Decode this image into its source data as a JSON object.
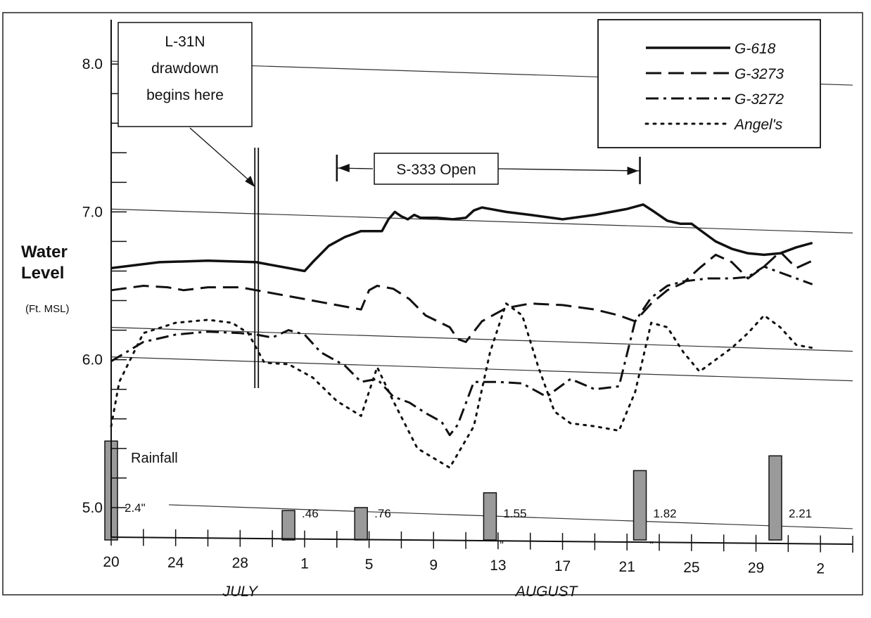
{
  "chart_data": {
    "type": "line",
    "ylabel": "Water Level",
    "ylabel_unit": "(Ft. MSL)",
    "y_tick_labels": [
      "8.0",
      "7.0",
      "6.0",
      "5.0"
    ],
    "y_ticks": [
      8.0,
      7.0,
      6.0,
      5.0
    ],
    "ylim": [
      4.8,
      8.3
    ],
    "x_unit": "day index (0 = July 20)",
    "xlim": [
      0,
      46
    ],
    "x_tick_labels": [
      {
        "day": 0,
        "label": "20"
      },
      {
        "day": 4,
        "label": "24"
      },
      {
        "day": 8,
        "label": "28"
      },
      {
        "day": 12,
        "label": "1"
      },
      {
        "day": 16,
        "label": "5"
      },
      {
        "day": 20,
        "label": "9"
      },
      {
        "day": 24,
        "label": "13"
      },
      {
        "day": 28,
        "label": "17"
      },
      {
        "day": 32,
        "label": "21"
      },
      {
        "day": 36,
        "label": "25"
      },
      {
        "day": 40,
        "label": "29"
      },
      {
        "day": 44,
        "label": "2"
      }
    ],
    "month_labels": [
      {
        "day": 8,
        "label": "JULY"
      },
      {
        "day": 27,
        "label": "AUGUST"
      }
    ],
    "legend": "top-right",
    "series": [
      {
        "name": "G-618",
        "style": "solid",
        "points": [
          [
            0,
            6.62
          ],
          [
            3,
            6.66
          ],
          [
            6,
            6.67
          ],
          [
            9,
            6.66
          ],
          [
            12,
            6.6
          ],
          [
            12.5,
            6.66
          ],
          [
            13.5,
            6.77
          ],
          [
            14.5,
            6.83
          ],
          [
            15.5,
            6.87
          ],
          [
            16.8,
            6.87
          ],
          [
            17.2,
            6.95
          ],
          [
            17.6,
            7.0
          ],
          [
            18,
            6.97
          ],
          [
            18.4,
            6.95
          ],
          [
            18.8,
            6.98
          ],
          [
            19.2,
            6.96
          ],
          [
            20.2,
            6.96
          ],
          [
            21.2,
            6.95
          ],
          [
            22,
            6.96
          ],
          [
            22.5,
            7.01
          ],
          [
            23,
            7.03
          ],
          [
            23.5,
            7.02
          ],
          [
            24.5,
            7.0
          ],
          [
            26,
            6.98
          ],
          [
            28,
            6.95
          ],
          [
            30,
            6.98
          ],
          [
            32,
            7.02
          ],
          [
            33,
            7.05
          ],
          [
            33.7,
            7.0
          ],
          [
            34.5,
            6.94
          ],
          [
            35.3,
            6.92
          ],
          [
            36,
            6.92
          ],
          [
            36.5,
            6.88
          ],
          [
            37.5,
            6.8
          ],
          [
            38.5,
            6.75
          ],
          [
            39.5,
            6.72
          ],
          [
            40.5,
            6.71
          ],
          [
            41.5,
            6.72
          ],
          [
            42.5,
            6.76
          ],
          [
            43.5,
            6.79
          ]
        ]
      },
      {
        "name": "G-3273",
        "style": "dashed",
        "points": [
          [
            0,
            6.47
          ],
          [
            2,
            6.5
          ],
          [
            3.5,
            6.49
          ],
          [
            4.5,
            6.47
          ],
          [
            6,
            6.49
          ],
          [
            8,
            6.49
          ],
          [
            10,
            6.45
          ],
          [
            12,
            6.41
          ],
          [
            14,
            6.37
          ],
          [
            15.5,
            6.34
          ],
          [
            16,
            6.47
          ],
          [
            16.5,
            6.5
          ],
          [
            17.5,
            6.48
          ],
          [
            18.5,
            6.41
          ],
          [
            19.5,
            6.3
          ],
          [
            21,
            6.22
          ],
          [
            21.5,
            6.14
          ],
          [
            22,
            6.12
          ],
          [
            23,
            6.26
          ],
          [
            24.5,
            6.35
          ],
          [
            26,
            6.38
          ],
          [
            28,
            6.37
          ],
          [
            30,
            6.34
          ],
          [
            31.5,
            6.3
          ],
          [
            32.5,
            6.26
          ],
          [
            33.5,
            6.38
          ],
          [
            34.5,
            6.47
          ],
          [
            35.5,
            6.52
          ],
          [
            36.5,
            6.62
          ],
          [
            37.5,
            6.71
          ],
          [
            38.5,
            6.66
          ],
          [
            39.5,
            6.55
          ],
          [
            40.5,
            6.63
          ],
          [
            41.5,
            6.73
          ],
          [
            42.5,
            6.62
          ],
          [
            43.5,
            6.67
          ]
        ]
      },
      {
        "name": "G-3272",
        "style": "dashdot",
        "points": [
          [
            0,
            5.99
          ],
          [
            2,
            6.12
          ],
          [
            4,
            6.17
          ],
          [
            6,
            6.19
          ],
          [
            8,
            6.18
          ],
          [
            9,
            6.17
          ],
          [
            10,
            6.15
          ],
          [
            11,
            6.2
          ],
          [
            12,
            6.17
          ],
          [
            13,
            6.05
          ],
          [
            14.5,
            5.96
          ],
          [
            15.5,
            5.85
          ],
          [
            16.5,
            5.87
          ],
          [
            17.5,
            5.75
          ],
          [
            18.5,
            5.71
          ],
          [
            19.5,
            5.64
          ],
          [
            20.5,
            5.58
          ],
          [
            21,
            5.49
          ],
          [
            21.5,
            5.56
          ],
          [
            22.5,
            5.85
          ],
          [
            24,
            5.85
          ],
          [
            25.5,
            5.84
          ],
          [
            27,
            5.75
          ],
          [
            28.5,
            5.87
          ],
          [
            30,
            5.8
          ],
          [
            31.5,
            5.82
          ],
          [
            32.5,
            6.26
          ],
          [
            33.5,
            6.42
          ],
          [
            34.5,
            6.5
          ],
          [
            35.5,
            6.53
          ],
          [
            37,
            6.55
          ],
          [
            38,
            6.55
          ],
          [
            38.5,
            6.55
          ],
          [
            39.5,
            6.56
          ],
          [
            40.5,
            6.63
          ],
          [
            41.5,
            6.59
          ],
          [
            42.5,
            6.55
          ],
          [
            43.5,
            6.51
          ]
        ]
      },
      {
        "name": "Angel's",
        "style": "dotted",
        "points": [
          [
            0,
            5.55
          ],
          [
            0.5,
            5.85
          ],
          [
            2,
            6.18
          ],
          [
            4,
            6.25
          ],
          [
            6,
            6.27
          ],
          [
            7.5,
            6.25
          ],
          [
            8.5,
            6.18
          ],
          [
            9.5,
            5.98
          ],
          [
            11,
            5.97
          ],
          [
            12.5,
            5.88
          ],
          [
            14,
            5.72
          ],
          [
            15.5,
            5.62
          ],
          [
            16.5,
            5.95
          ],
          [
            17.5,
            5.72
          ],
          [
            19,
            5.4
          ],
          [
            21,
            5.27
          ],
          [
            22.5,
            5.55
          ],
          [
            23.5,
            6.05
          ],
          [
            24.5,
            6.38
          ],
          [
            25.5,
            6.3
          ],
          [
            26.5,
            5.95
          ],
          [
            27.5,
            5.65
          ],
          [
            28.5,
            5.57
          ],
          [
            30,
            5.55
          ],
          [
            31.5,
            5.52
          ],
          [
            32.5,
            5.78
          ],
          [
            33.5,
            6.25
          ],
          [
            34.5,
            6.22
          ],
          [
            35.5,
            6.05
          ],
          [
            36.5,
            5.92
          ],
          [
            37.5,
            6.0
          ],
          [
            38.5,
            6.08
          ],
          [
            39.5,
            6.18
          ],
          [
            40.5,
            6.3
          ],
          [
            41.5,
            6.22
          ],
          [
            42.5,
            6.1
          ],
          [
            43.5,
            6.08
          ]
        ]
      }
    ],
    "rainfall": {
      "label": "Rainfall",
      "bars": [
        {
          "day": 0,
          "top": 5.45,
          "label": "2.4\""
        },
        {
          "day": 11,
          "top": 4.98,
          "label": ".46"
        },
        {
          "day": 15.5,
          "top": 5.0,
          "label": ".76"
        },
        {
          "day": 23.5,
          "top": 5.1,
          "label": "1.55"
        },
        {
          "day": 32.8,
          "top": 5.25,
          "label": "1.82"
        },
        {
          "day": 41.2,
          "top": 5.35,
          "label": "2.21"
        }
      ],
      "ditto_marks": [
        "\"",
        "\""
      ]
    },
    "annotations": {
      "drawdown_text": [
        "L-31N",
        "drawdown",
        "begins here"
      ],
      "drawdown_day": 9,
      "s333_label": "S-333 Open",
      "s333_start_day": 14,
      "s333_end_day": 32.8
    }
  }
}
